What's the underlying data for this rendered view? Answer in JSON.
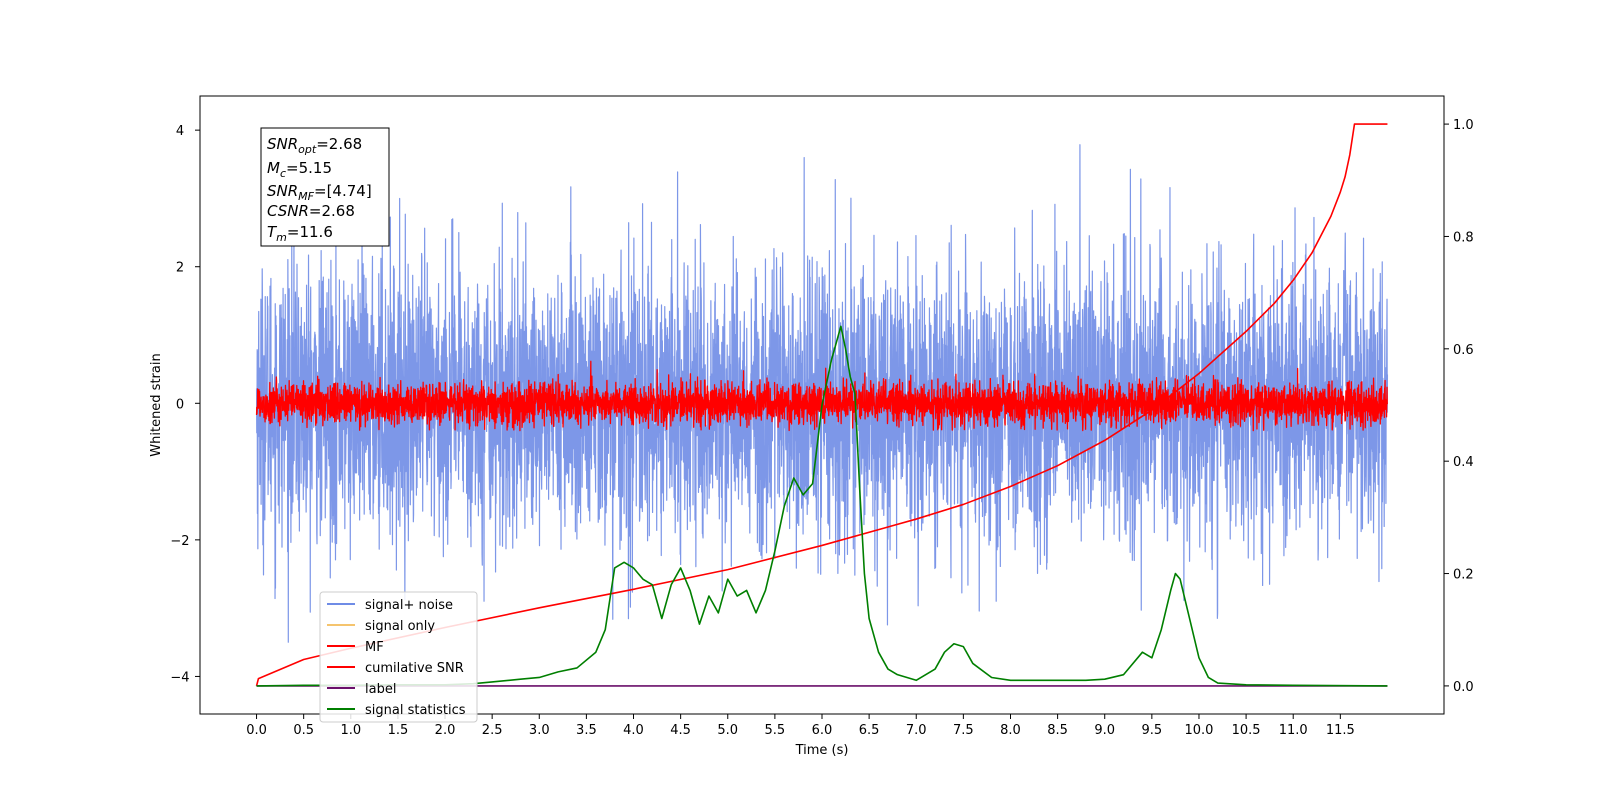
{
  "chart_data": {
    "type": "line",
    "title": "",
    "xlabel": "Time (s)",
    "ylabel_left": "Whitened strain",
    "ylabel_right": "",
    "xlim": [
      -0.6,
      12.6
    ],
    "ylim_left": [
      -4.55,
      4.5
    ],
    "ylim_right": [
      -0.05,
      1.05
    ],
    "x_ticks": [
      "0.0",
      "0.5",
      "1.0",
      "1.5",
      "2.0",
      "2.5",
      "3.0",
      "3.5",
      "4.0",
      "4.5",
      "5.0",
      "5.5",
      "6.0",
      "6.5",
      "7.0",
      "7.5",
      "8.0",
      "8.5",
      "9.0",
      "9.5",
      "10.0",
      "10.5",
      "11.0",
      "11.5"
    ],
    "y_ticks_left": [
      "-4",
      "-2",
      "0",
      "2",
      "4"
    ],
    "y_ticks_right": [
      "0.0",
      "0.2",
      "0.4",
      "0.6",
      "0.8",
      "1.0"
    ],
    "grid": false,
    "legend_position": "lower-left",
    "annotation": {
      "snr_opt": "=2.68",
      "mc": "=5.15",
      "snr_mf": "=[4.74]",
      "csnr": "=2.68",
      "tm": "=11.6"
    },
    "series": [
      {
        "name": "signal+ noise",
        "axis": "left",
        "color": "#6f8ce6",
        "kind": "noise",
        "x_range": [
          0.0,
          12.0
        ],
        "std": 1.0,
        "approx_min": -4.1,
        "approx_max": 4.1
      },
      {
        "name": "signal only",
        "axis": "left",
        "color": "#f5c46e",
        "kind": "hidden"
      },
      {
        "name": "MF",
        "axis": "left",
        "color": "#ff0000",
        "kind": "noise",
        "x_range": [
          0.0,
          12.0
        ],
        "std": 0.15,
        "approx_min": -0.4,
        "approx_max": 1.0
      },
      {
        "name": "cumilative SNR",
        "axis": "right",
        "color": "#ff0000",
        "x": [
          0.0,
          0.02,
          0.5,
          1.0,
          2.0,
          3.0,
          4.0,
          5.0,
          6.0,
          7.0,
          7.5,
          8.0,
          8.5,
          9.0,
          9.5,
          10.0,
          10.5,
          10.8,
          11.0,
          11.2,
          11.4,
          11.5,
          11.55,
          11.6,
          11.65,
          12.0
        ],
        "y": [
          0.0,
          0.013,
          0.047,
          0.067,
          0.104,
          0.139,
          0.172,
          0.207,
          0.25,
          0.297,
          0.323,
          0.355,
          0.392,
          0.437,
          0.491,
          0.556,
          0.631,
          0.681,
          0.722,
          0.771,
          0.836,
          0.879,
          0.906,
          0.945,
          1.0,
          1.0
        ]
      },
      {
        "name": "label",
        "axis": "right",
        "color": "#6a0f6a",
        "x": [
          0.0,
          12.0
        ],
        "y": [
          0.0,
          0.0
        ]
      },
      {
        "name": "signal statistics",
        "axis": "right",
        "color": "#007f00",
        "x": [
          0.0,
          0.5,
          1.0,
          1.5,
          2.0,
          2.3,
          2.5,
          2.8,
          3.0,
          3.2,
          3.4,
          3.6,
          3.7,
          3.8,
          3.9,
          4.0,
          4.1,
          4.2,
          4.3,
          4.4,
          4.5,
          4.6,
          4.7,
          4.8,
          4.9,
          5.0,
          5.1,
          5.2,
          5.3,
          5.4,
          5.5,
          5.6,
          5.7,
          5.8,
          5.9,
          6.0,
          6.1,
          6.2,
          6.25,
          6.3,
          6.35,
          6.4,
          6.45,
          6.5,
          6.6,
          6.7,
          6.8,
          7.0,
          7.2,
          7.3,
          7.4,
          7.5,
          7.6,
          7.8,
          8.0,
          8.2,
          8.4,
          8.6,
          8.8,
          9.0,
          9.2,
          9.4,
          9.5,
          9.6,
          9.7,
          9.75,
          9.8,
          9.9,
          10.0,
          10.1,
          10.2,
          10.5,
          11.0,
          12.0
        ],
        "y": [
          0.0,
          0.001,
          0.001,
          0.002,
          0.002,
          0.004,
          0.007,
          0.012,
          0.015,
          0.025,
          0.032,
          0.06,
          0.1,
          0.21,
          0.22,
          0.21,
          0.19,
          0.18,
          0.12,
          0.18,
          0.21,
          0.17,
          0.11,
          0.16,
          0.13,
          0.19,
          0.16,
          0.17,
          0.13,
          0.17,
          0.24,
          0.32,
          0.37,
          0.34,
          0.36,
          0.5,
          0.58,
          0.64,
          0.6,
          0.55,
          0.52,
          0.35,
          0.2,
          0.12,
          0.06,
          0.03,
          0.02,
          0.01,
          0.03,
          0.06,
          0.075,
          0.07,
          0.04,
          0.015,
          0.01,
          0.01,
          0.01,
          0.01,
          0.01,
          0.012,
          0.02,
          0.06,
          0.05,
          0.1,
          0.17,
          0.2,
          0.19,
          0.12,
          0.05,
          0.015,
          0.005,
          0.002,
          0.001,
          0.0
        ]
      }
    ]
  }
}
